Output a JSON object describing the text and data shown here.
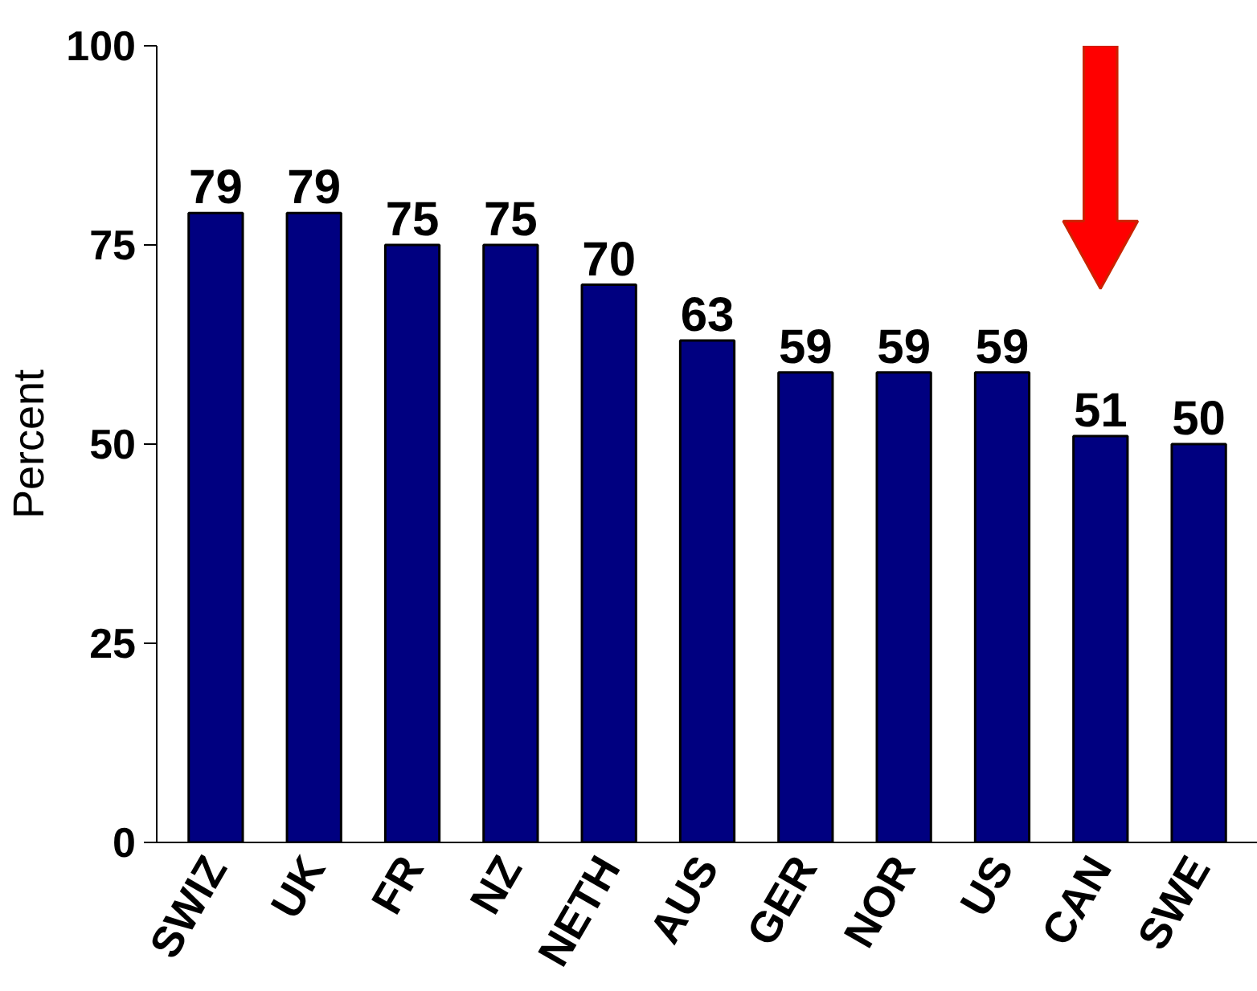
{
  "chart_data": {
    "type": "bar",
    "ylabel": "Percent",
    "categories": [
      "SWIZ",
      "UK",
      "FR",
      "NZ",
      "NETH",
      "AUS",
      "GER",
      "NOR",
      "US",
      "CAN",
      "SWE"
    ],
    "values": [
      79,
      79,
      75,
      75,
      70,
      63,
      59,
      59,
      59,
      51,
      50
    ],
    "color": "#000080",
    "ylim": [
      0,
      100
    ],
    "yticks": [
      0,
      25,
      50,
      75,
      100
    ],
    "data_labels": true,
    "grid": false
  }
}
